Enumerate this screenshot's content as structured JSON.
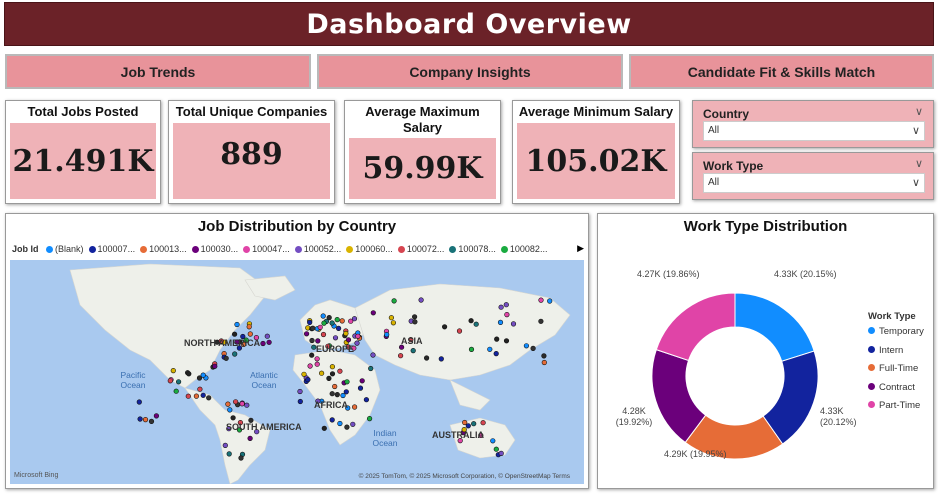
{
  "header": {
    "title": "Dashboard Overview"
  },
  "nav": {
    "tabs": [
      "Job Trends",
      "Company Insights",
      "Candidate Fit & Skills Match"
    ]
  },
  "kpis": [
    {
      "title": "Total Jobs Posted",
      "value": "21.491K"
    },
    {
      "title": "Total Unique Companies",
      "value": "889"
    },
    {
      "title": "Average Maximum Salary",
      "value": "59.99K"
    },
    {
      "title": "Average Minimum Salary",
      "value": "105.02K"
    }
  ],
  "slicers": [
    {
      "title": "Country",
      "value": "All"
    },
    {
      "title": "Work Type",
      "value": "All"
    }
  ],
  "map": {
    "title": "Job Distribution by Country",
    "legend_title": "Job Id",
    "legend_items": [
      {
        "label": "(Blank)",
        "color": "#118dff"
      },
      {
        "label": "100007...",
        "color": "#12239e"
      },
      {
        "label": "100013...",
        "color": "#e66c37"
      },
      {
        "label": "100030...",
        "color": "#6b007b"
      },
      {
        "label": "100047...",
        "color": "#e044a7"
      },
      {
        "label": "100052...",
        "color": "#744ec2"
      },
      {
        "label": "100060...",
        "color": "#d9b300"
      },
      {
        "label": "100072...",
        "color": "#d64550"
      },
      {
        "label": "100078...",
        "color": "#197278"
      },
      {
        "label": "100082...",
        "color": "#1aab40"
      }
    ],
    "regions": [
      "NORTH AMERICA",
      "SOUTH AMERICA",
      "EUROPE",
      "AFRICA",
      "ASIA",
      "AUSTRALIA"
    ],
    "oceans": [
      "Pacific Ocean",
      "Atlantic Ocean",
      "Indian Ocean"
    ],
    "brand": "Microsoft Bing",
    "credits": "© 2025 TomTom, © 2025 Microsoft Corporation, © OpenStreetMap  Terms"
  },
  "chart_data": {
    "type": "pie",
    "title": "Work Type Distribution",
    "legend_title": "Work Type",
    "slices": [
      {
        "name": "Temporary",
        "value": 4330,
        "label": "4.33K (20.15%)",
        "color": "#118dff"
      },
      {
        "name": "Intern",
        "value": 4330,
        "label": "4.33K (20.12%)",
        "color": "#12239e"
      },
      {
        "name": "Full-Time",
        "value": 4290,
        "label": "4.29K (19.95%)",
        "color": "#e66c37"
      },
      {
        "name": "Contract",
        "value": 4280,
        "label": "4.28K (19.92%)",
        "color": "#6b007b"
      },
      {
        "name": "Part-Time",
        "value": 4270,
        "label": "4.27K (19.86%)",
        "color": "#e044a7"
      }
    ]
  }
}
